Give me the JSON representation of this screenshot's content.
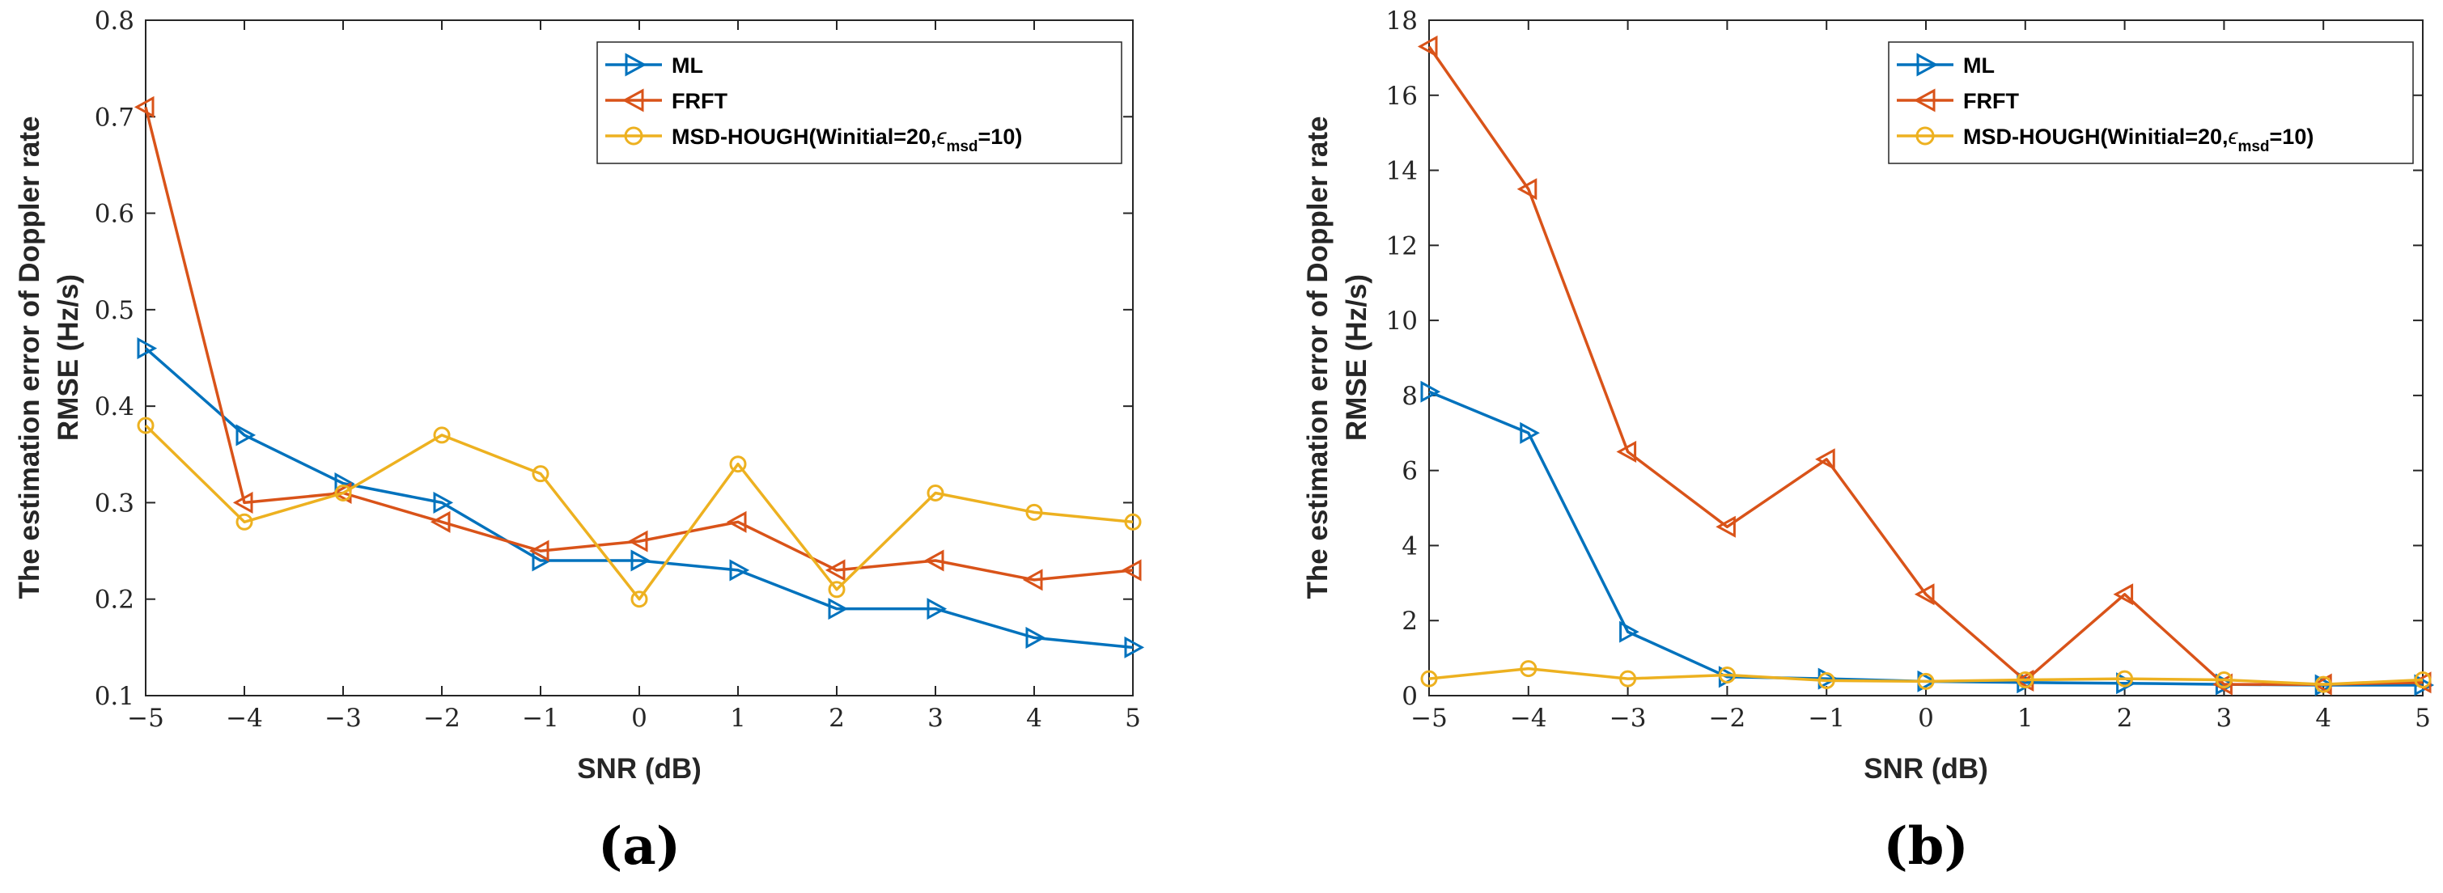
{
  "chart_data": [
    {
      "type": "line",
      "panel_label": "(a)",
      "x": [
        -5,
        -4,
        -3,
        -2,
        -1,
        0,
        1,
        2,
        3,
        4,
        5
      ],
      "xlabel": "SNR (dB)",
      "ylabel_line1": "The estimation error of Doppler rate",
      "ylabel_line2": "RMSE (Hz/s)",
      "xlim": [
        -5,
        5
      ],
      "ylim": [
        0.1,
        0.8
      ],
      "xticks": [
        -5,
        -4,
        -3,
        -2,
        -1,
        0,
        1,
        2,
        3,
        4,
        5
      ],
      "xtick_labels": [
        "−5",
        "−4",
        "−3",
        "−2",
        "−1",
        "0",
        "1",
        "2",
        "3",
        "4",
        "5"
      ],
      "yticks": [
        0.1,
        0.2,
        0.3,
        0.4,
        0.5,
        0.6,
        0.7,
        0.8
      ],
      "ytick_labels": [
        "0.1",
        "0.2",
        "0.3",
        "0.4",
        "0.5",
        "0.6",
        "0.7",
        "0.8"
      ],
      "legend_position": "top-right",
      "series": [
        {
          "name": "ML",
          "color": "#0072BD",
          "marker": "triangle-right",
          "values": [
            0.46,
            0.37,
            0.32,
            0.3,
            0.24,
            0.24,
            0.23,
            0.19,
            0.19,
            0.16,
            0.15
          ]
        },
        {
          "name": "FRFT",
          "color": "#D95319",
          "marker": "triangle-left",
          "values": [
            0.71,
            0.3,
            0.31,
            0.28,
            0.25,
            0.26,
            0.28,
            0.23,
            0.24,
            0.22,
            0.23
          ]
        },
        {
          "name": "MSD-HOUGH",
          "color": "#EDB120",
          "marker": "circle",
          "values": [
            0.38,
            0.28,
            0.31,
            0.37,
            0.33,
            0.2,
            0.34,
            0.21,
            0.31,
            0.29,
            0.28
          ]
        }
      ]
    },
    {
      "type": "line",
      "panel_label": "(b)",
      "x": [
        -5,
        -4,
        -3,
        -2,
        -1,
        0,
        1,
        2,
        3,
        4,
        5
      ],
      "xlabel": "SNR (dB)",
      "ylabel_line1": "The estimation error of Doppler rate",
      "ylabel_line2": "RMSE (Hz/s)",
      "xlim": [
        -5,
        5
      ],
      "ylim": [
        0,
        18
      ],
      "xticks": [
        -5,
        -4,
        -3,
        -2,
        -1,
        0,
        1,
        2,
        3,
        4,
        5
      ],
      "xtick_labels": [
        "−5",
        "−4",
        "−3",
        "−2",
        "−1",
        "0",
        "1",
        "2",
        "3",
        "4",
        "5"
      ],
      "yticks": [
        0,
        2,
        4,
        6,
        8,
        10,
        12,
        14,
        16,
        18
      ],
      "ytick_labels": [
        "0",
        "2",
        "4",
        "6",
        "8",
        "10",
        "12",
        "14",
        "16",
        "18"
      ],
      "legend_position": "top-right",
      "series": [
        {
          "name": "ML",
          "color": "#0072BD",
          "marker": "triangle-right",
          "values": [
            8.1,
            7.0,
            1.7,
            0.5,
            0.45,
            0.38,
            0.35,
            0.33,
            0.3,
            0.28,
            0.28
          ]
        },
        {
          "name": "FRFT",
          "color": "#D95319",
          "marker": "triangle-left",
          "values": [
            17.3,
            13.5,
            6.5,
            4.5,
            6.3,
            2.7,
            0.4,
            2.7,
            0.3,
            0.3,
            0.35
          ]
        },
        {
          "name": "MSD-HOUGH",
          "color": "#EDB120",
          "marker": "circle",
          "values": [
            0.45,
            0.72,
            0.45,
            0.55,
            0.4,
            0.38,
            0.42,
            0.45,
            0.42,
            0.3,
            0.42
          ]
        }
      ]
    }
  ],
  "legend": {
    "ml": "ML",
    "frft": "FRFT",
    "msd_main": "MSD-HOUGH(Winitial=20,",
    "msd_eps": "ϵ",
    "msd_sub": "msd",
    "msd_tail": "=10)"
  }
}
